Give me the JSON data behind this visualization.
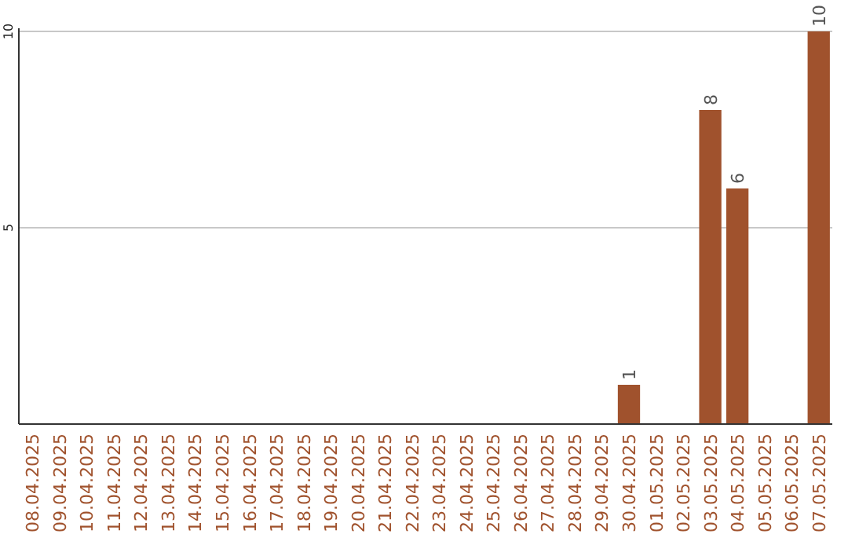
{
  "chart_data": {
    "type": "bar",
    "categories": [
      "08.04.2025",
      "09.04.2025",
      "10.04.2025",
      "11.04.2025",
      "12.04.2025",
      "13.04.2025",
      "14.04.2025",
      "15.04.2025",
      "16.04.2025",
      "17.04.2025",
      "18.04.2025",
      "19.04.2025",
      "20.04.2025",
      "21.04.2025",
      "22.04.2025",
      "23.04.2025",
      "24.04.2025",
      "25.04.2025",
      "26.04.2025",
      "27.04.2025",
      "28.04.2025",
      "29.04.2025",
      "30.04.2025",
      "01.05.2025",
      "02.05.2025",
      "03.05.2025",
      "04.05.2025",
      "05.05.2025",
      "06.05.2025",
      "07.05.2025"
    ],
    "values": [
      0,
      0,
      0,
      0,
      0,
      0,
      0,
      0,
      0,
      0,
      0,
      0,
      0,
      0,
      0,
      0,
      0,
      0,
      0,
      0,
      0,
      0,
      1,
      0,
      0,
      8,
      6,
      0,
      0,
      10
    ],
    "value_labels": [
      null,
      null,
      null,
      null,
      null,
      null,
      null,
      null,
      null,
      null,
      null,
      null,
      null,
      null,
      null,
      null,
      null,
      null,
      null,
      null,
      null,
      null,
      "1",
      null,
      null,
      "8",
      "6",
      null,
      null,
      "10"
    ],
    "color": "#a0522d",
    "ylim": [
      0,
      10
    ],
    "yticks": [
      5,
      10
    ],
    "grid": "y"
  }
}
